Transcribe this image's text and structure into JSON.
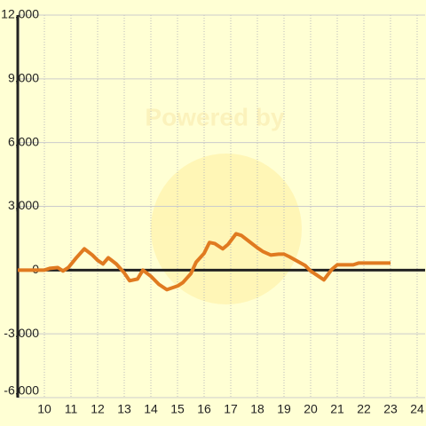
{
  "chart_data": {
    "type": "line",
    "watermark": "Powered by",
    "x": [
      9.0,
      10.0,
      10.2,
      10.5,
      10.7,
      10.9,
      11.2,
      11.5,
      11.8,
      12.0,
      12.2,
      12.4,
      12.7,
      13.0,
      13.2,
      13.5,
      13.7,
      14.0,
      14.3,
      14.6,
      15.0,
      15.2,
      15.5,
      15.7,
      16.0,
      16.2,
      16.4,
      16.7,
      16.9,
      17.2,
      17.4,
      17.7,
      18.0,
      18.2,
      18.5,
      18.8,
      19.0,
      19.2,
      19.5,
      19.8,
      20.0,
      20.3,
      20.5,
      20.8,
      21.0,
      21.3,
      21.6,
      21.8,
      22.0,
      23.0
    ],
    "series": [
      {
        "color": "#e07a20",
        "values": [
          0,
          0,
          80,
          120,
          -40,
          120,
          580,
          1000,
          710,
          460,
          290,
          580,
          290,
          -130,
          -500,
          -420,
          0,
          -290,
          -670,
          -920,
          -750,
          -590,
          -170,
          375,
          790,
          1300,
          1250,
          1000,
          1210,
          1710,
          1630,
          1340,
          1050,
          880,
          710,
          750,
          750,
          630,
          420,
          210,
          -40,
          -290,
          -460,
          40,
          250,
          250,
          250,
          330,
          330,
          330
        ]
      }
    ],
    "xlim": [
      9,
      24.3
    ],
    "xticks": [
      10,
      11,
      12,
      13,
      14,
      15,
      16,
      17,
      18,
      19,
      20,
      21,
      22,
      23,
      24
    ],
    "ylim": [
      -6000,
      12000
    ],
    "yticks": [
      {
        "value": -6000,
        "label": "-6,000"
      },
      {
        "value": -3000,
        "label": "-3,000"
      },
      0,
      {
        "value": 3000,
        "label": "3,000"
      },
      {
        "value": 6000,
        "label": "6,000"
      },
      {
        "value": 9000,
        "label": "9,000"
      },
      {
        "value": 12000,
        "label": "12,000"
      }
    ],
    "grid": true
  }
}
